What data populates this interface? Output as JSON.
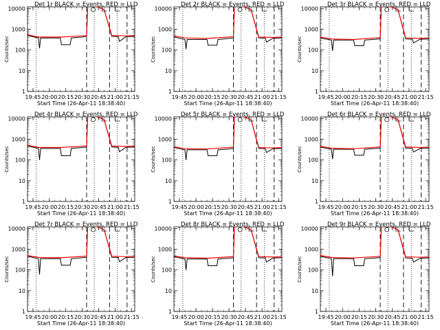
{
  "panel_title_suffix": "BLACK = Events, RED = LLD",
  "panel_labels": [
    "Det 1r",
    "Det 2r",
    "Det 3r",
    "Det 4r",
    "Det 5r",
    "Det 6r",
    "Det 7r",
    "Det 8r",
    "Det 9r"
  ],
  "xlabel": "Start Time (26-Apr-11 18:38:40)",
  "ylabel": "Counts/sec",
  "x_tick_labels": [
    "19:45",
    "20:00",
    "20:15",
    "20:30",
    "20:45",
    "21:00",
    "21:15"
  ],
  "y_tick_labels": [
    "1",
    "10",
    "100",
    "1000",
    "10000"
  ],
  "colors": {
    "events": "#000000",
    "lld": "#ff0000",
    "background": "#ffffff"
  },
  "chart_data": {
    "type": "line",
    "yscale": "log",
    "xlim": [
      "19:40",
      "21:18"
    ],
    "ylim": [
      1,
      12000
    ],
    "grid": false,
    "vertical_markers": {
      "dotted": [
        "19:48",
        "20:41",
        "21:02"
      ],
      "dashed": [
        "20:34",
        "20:55",
        "21:11"
      ]
    },
    "top_markers": [
      {
        "x": "20:40",
        "shape": "circle"
      },
      {
        "x": "20:50",
        "shape": "bracket"
      },
      {
        "x": "21:02",
        "shape": "bracket"
      }
    ],
    "panels": [
      {
        "name": "Det 1r",
        "lld": {
          "x": [
            "19:40",
            "19:50",
            "20:10",
            "20:30",
            "20:34",
            "20:35",
            "20:40",
            "20:50",
            "20:57",
            "21:10",
            "21:18"
          ],
          "y": [
            550,
            420,
            420,
            480,
            500,
            14000,
            14000,
            9000,
            500,
            480,
            500
          ]
        },
        "events": {
          "x": [
            "19:40",
            "19:50",
            "19:51",
            "19:52",
            "20:10",
            "20:11",
            "20:19",
            "20:20",
            "20:30",
            "20:34",
            "20:35",
            "20:40",
            "20:50",
            "20:57",
            "21:03",
            "21:04",
            "21:10",
            "21:18"
          ],
          "y": [
            500,
            380,
            120,
            380,
            380,
            180,
            180,
            380,
            420,
            450,
            14000,
            14000,
            9000,
            450,
            440,
            260,
            440,
            450
          ]
        }
      },
      {
        "name": "Det 2r",
        "lld": {
          "x": [
            "19:40",
            "19:50",
            "20:10",
            "20:30",
            "20:34",
            "20:35",
            "20:40",
            "20:50",
            "20:57",
            "21:10",
            "21:18"
          ],
          "y": [
            480,
            380,
            360,
            420,
            440,
            14000,
            14000,
            9000,
            420,
            400,
            420
          ]
        },
        "events": {
          "x": [
            "19:40",
            "19:50",
            "19:51",
            "19:52",
            "20:10",
            "20:11",
            "20:19",
            "20:20",
            "20:30",
            "20:34",
            "20:35",
            "20:40",
            "20:50",
            "20:57",
            "21:03",
            "21:04",
            "21:10",
            "21:18"
          ],
          "y": [
            430,
            320,
            110,
            320,
            320,
            170,
            170,
            320,
            360,
            380,
            14000,
            14000,
            9000,
            380,
            370,
            240,
            370,
            380
          ]
        }
      },
      {
        "name": "Det 3r",
        "lld": {
          "x": [
            "19:40",
            "19:50",
            "20:10",
            "20:30",
            "20:34",
            "20:35",
            "20:40",
            "20:50",
            "20:57",
            "21:10",
            "21:18"
          ],
          "y": [
            420,
            340,
            320,
            380,
            400,
            14000,
            14000,
            9000,
            380,
            360,
            380
          ]
        },
        "events": {
          "x": [
            "19:40",
            "19:50",
            "19:51",
            "19:52",
            "20:10",
            "20:11",
            "20:19",
            "20:20",
            "20:30",
            "20:34",
            "20:35",
            "20:40",
            "20:50",
            "20:57",
            "21:03",
            "21:04",
            "21:10",
            "21:18"
          ],
          "y": [
            380,
            300,
            90,
            300,
            300,
            160,
            160,
            300,
            330,
            350,
            14000,
            14000,
            9000,
            340,
            330,
            220,
            330,
            340
          ]
        }
      },
      {
        "name": "Det 4r",
        "lld": {
          "x": [
            "19:40",
            "19:50",
            "20:10",
            "20:30",
            "20:34",
            "20:35",
            "20:40",
            "20:50",
            "20:57",
            "21:10",
            "21:18"
          ],
          "y": [
            520,
            400,
            400,
            460,
            480,
            14000,
            14000,
            9000,
            470,
            450,
            470
          ]
        },
        "events": {
          "x": [
            "19:40",
            "19:50",
            "19:51",
            "19:52",
            "20:10",
            "20:11",
            "20:19",
            "20:20",
            "20:30",
            "20:34",
            "20:35",
            "20:40",
            "20:50",
            "20:57",
            "21:03",
            "21:04",
            "21:10",
            "21:18"
          ],
          "y": [
            470,
            360,
            100,
            360,
            360,
            160,
            160,
            360,
            400,
            420,
            14000,
            14000,
            9000,
            420,
            410,
            250,
            410,
            420
          ]
        }
      },
      {
        "name": "Det 5r",
        "lld": {
          "x": [
            "19:40",
            "19:50",
            "20:10",
            "20:30",
            "20:34",
            "20:35",
            "20:40",
            "20:50",
            "20:57",
            "21:10",
            "21:18"
          ],
          "y": [
            440,
            350,
            340,
            400,
            420,
            14000,
            14000,
            9000,
            400,
            380,
            400
          ]
        },
        "events": {
          "x": [
            "19:40",
            "19:50",
            "19:51",
            "19:52",
            "20:10",
            "20:11",
            "20:19",
            "20:20",
            "20:30",
            "20:34",
            "20:35",
            "20:40",
            "20:50",
            "20:57",
            "21:03",
            "21:04",
            "21:10",
            "21:18"
          ],
          "y": [
            400,
            310,
            100,
            310,
            310,
            160,
            160,
            310,
            340,
            360,
            14000,
            14000,
            9000,
            360,
            350,
            230,
            350,
            360
          ]
        }
      },
      {
        "name": "Det 6r",
        "lld": {
          "x": [
            "19:40",
            "19:50",
            "20:10",
            "20:30",
            "20:34",
            "20:35",
            "20:40",
            "20:50",
            "20:57",
            "21:10",
            "21:18"
          ],
          "y": [
            460,
            370,
            350,
            410,
            430,
            14000,
            14000,
            9000,
            420,
            400,
            420
          ]
        },
        "events": {
          "x": [
            "19:40",
            "19:50",
            "19:51",
            "19:52",
            "20:10",
            "20:11",
            "20:19",
            "20:20",
            "20:30",
            "20:34",
            "20:35",
            "20:40",
            "20:50",
            "20:57",
            "21:03",
            "21:04",
            "21:10",
            "21:18"
          ],
          "y": [
            420,
            330,
            110,
            330,
            330,
            170,
            170,
            330,
            360,
            380,
            14000,
            14000,
            9000,
            370,
            360,
            240,
            360,
            370
          ]
        }
      },
      {
        "name": "Det 7r",
        "lld": {
          "x": [
            "19:40",
            "19:50",
            "20:10",
            "20:30",
            "20:34",
            "20:35",
            "20:40",
            "20:50",
            "20:57",
            "21:10",
            "21:18"
          ],
          "y": [
            500,
            400,
            390,
            450,
            470,
            14000,
            14000,
            9000,
            460,
            440,
            460
          ]
        },
        "events": {
          "x": [
            "19:40",
            "19:50",
            "19:51",
            "19:52",
            "20:10",
            "20:11",
            "20:19",
            "20:20",
            "20:30",
            "20:34",
            "20:35",
            "20:40",
            "20:50",
            "20:57",
            "21:03",
            "21:04",
            "21:10",
            "21:18"
          ],
          "y": [
            460,
            350,
            60,
            350,
            350,
            170,
            170,
            350,
            390,
            410,
            14000,
            14000,
            9000,
            410,
            400,
            250,
            400,
            410
          ]
        }
      },
      {
        "name": "Det 8r",
        "lld": {
          "x": [
            "19:40",
            "19:50",
            "20:10",
            "20:30",
            "20:34",
            "20:35",
            "20:40",
            "20:50",
            "20:57",
            "21:10",
            "21:18"
          ],
          "y": [
            480,
            390,
            370,
            430,
            450,
            14000,
            14000,
            9000,
            440,
            420,
            440
          ]
        },
        "events": {
          "x": [
            "19:40",
            "19:50",
            "19:51",
            "19:52",
            "20:10",
            "20:11",
            "20:19",
            "20:20",
            "20:30",
            "20:34",
            "20:35",
            "20:40",
            "20:50",
            "20:57",
            "21:03",
            "21:04",
            "21:10",
            "21:18"
          ],
          "y": [
            440,
            340,
            100,
            340,
            340,
            160,
            160,
            340,
            370,
            390,
            14000,
            14000,
            9000,
            390,
            380,
            240,
            380,
            390
          ]
        }
      },
      {
        "name": "Det 9r",
        "lld": {
          "x": [
            "19:40",
            "19:50",
            "20:10",
            "20:30",
            "20:34",
            "20:35",
            "20:40",
            "20:50",
            "20:57",
            "21:10",
            "21:18"
          ],
          "y": [
            500,
            400,
            380,
            440,
            460,
            14000,
            14000,
            9000,
            430,
            410,
            430
          ]
        },
        "events": {
          "x": [
            "19:40",
            "19:50",
            "19:51",
            "19:52",
            "20:10",
            "20:11",
            "20:19",
            "20:20",
            "20:30",
            "20:34",
            "20:35",
            "20:40",
            "20:50",
            "20:57",
            "21:03",
            "21:04",
            "21:10",
            "21:18"
          ],
          "y": [
            460,
            350,
            50,
            350,
            350,
            160,
            160,
            350,
            380,
            400,
            14000,
            14000,
            9000,
            380,
            370,
            240,
            370,
            380
          ]
        }
      }
    ]
  }
}
